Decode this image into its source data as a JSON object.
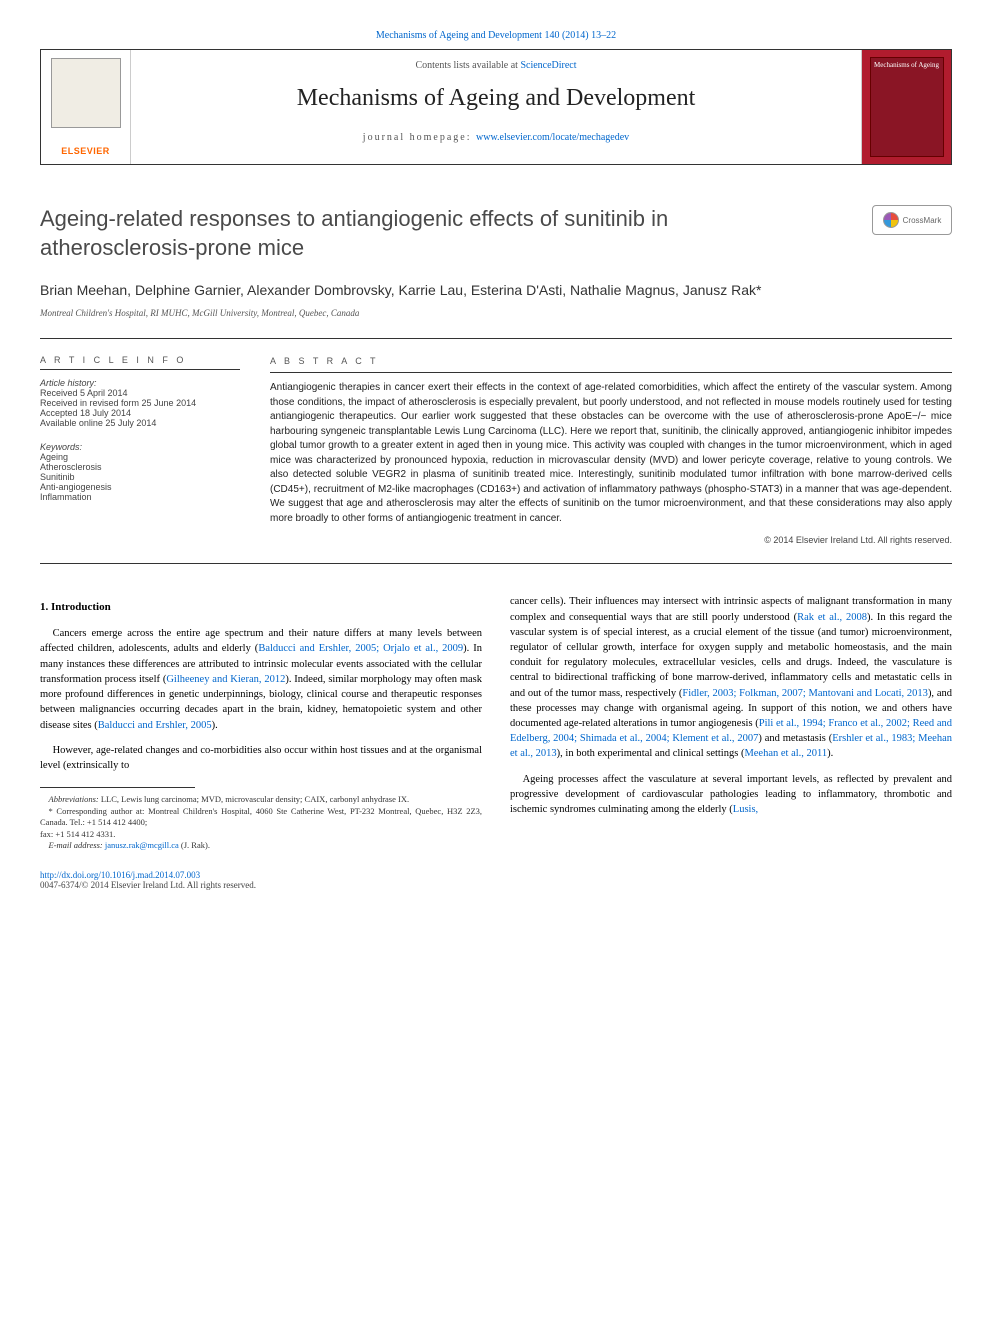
{
  "top_link": "Mechanisms of Ageing and Development 140 (2014) 13–22",
  "header": {
    "contents_prefix": "Contents lists available at ",
    "contents_link": "ScienceDirect",
    "journal_title": "Mechanisms of Ageing and Development",
    "homepage_prefix": "journal homepage: ",
    "homepage_url": "www.elsevier.com/locate/mechagedev",
    "elsevier": "ELSEVIER",
    "cover_text": "Mechanisms of Ageing"
  },
  "crossmark": "CrossMark",
  "article": {
    "title": "Ageing-related responses to antiangiogenic effects of sunitinib in atherosclerosis-prone mice",
    "authors": "Brian Meehan, Delphine Garnier, Alexander Dombrovsky, Karrie Lau, Esterina D'Asti, Nathalie Magnus, Janusz Rak",
    "corr_mark": "*",
    "affiliation": "Montreal Children's Hospital, RI MUHC, McGill University, Montreal, Quebec, Canada"
  },
  "info": {
    "heading": "A R T I C L E   I N F O",
    "history_label": "Article history:",
    "history": [
      "Received 5 April 2014",
      "Received in revised form 25 June 2014",
      "Accepted 18 July 2014",
      "Available online 25 July 2014"
    ],
    "keywords_label": "Keywords:",
    "keywords": [
      "Ageing",
      "Atherosclerosis",
      "Sunitinib",
      "Anti-angiogenesis",
      "Inflammation"
    ]
  },
  "abstract": {
    "heading": "A B S T R A C T",
    "text": "Antiangiogenic therapies in cancer exert their effects in the context of age-related comorbidities, which affect the entirety of the vascular system. Among those conditions, the impact of atherosclerosis is especially prevalent, but poorly understood, and not reflected in mouse models routinely used for testing antiangiogenic therapeutics. Our earlier work suggested that these obstacles can be overcome with the use of atherosclerosis-prone ApoE−/− mice harbouring syngeneic transplantable Lewis Lung Carcinoma (LLC). Here we report that, sunitinib, the clinically approved, antiangiogenic inhibitor impedes global tumor growth to a greater extent in aged then in young mice. This activity was coupled with changes in the tumor microenvironment, which in aged mice was characterized by pronounced hypoxia, reduction in microvascular density (MVD) and lower pericyte coverage, relative to young controls. We also detected soluble VEGR2 in plasma of sunitinib treated mice. Interestingly, sunitinib modulated tumor infiltration with bone marrow-derived cells (CD45+), recruitment of M2-like macrophages (CD163+) and activation of inflammatory pathways (phospho-STAT3) in a manner that was age-dependent. We suggest that age and atherosclerosis may alter the effects of sunitinib on the tumor microenvironment, and that these considerations may also apply more broadly to other forms of antiangiogenic treatment in cancer.",
    "copyright": "© 2014 Elsevier Ireland Ltd. All rights reserved."
  },
  "body": {
    "heading1": "1. Introduction",
    "left_p1": "Cancers emerge across the entire age spectrum and their nature differs at many levels between affected children, adolescents, adults and elderly (",
    "left_c1": "Balducci and Ershler, 2005; Orjalo et al., 2009",
    "left_p1b": "). In many instances these differences are attributed to intrinsic molecular events associated with the cellular transformation process itself (",
    "left_c2": "Gilheeney and Kieran, 2012",
    "left_p1c": "). Indeed, similar morphology may often mask more profound differences in genetic underpinnings, biology, clinical course and therapeutic responses between malignancies occurring decades apart in the brain, kidney, hematopoietic system and other disease sites (",
    "left_c3": "Balducci and Ershler, 2005",
    "left_p1d": ").",
    "left_p2": "However, age-related changes and co-morbidities also occur within host tissues and at the organismal level (extrinsically to",
    "right_p1": "cancer cells). Their influences may intersect with intrinsic aspects of malignant transformation in many complex and consequential ways that are still poorly understood (",
    "right_c1": "Rak et al., 2008",
    "right_p1b": "). In this regard the vascular system is of special interest, as a crucial element of the tissue (and tumor) microenvironment, regulator of cellular growth, interface for oxygen supply and metabolic homeostasis, and the main conduit for regulatory molecules, extracellular vesicles, cells and drugs. Indeed, the vasculature is central to bidirectional trafficking of bone marrow-derived, inflammatory cells and metastatic cells in and out of the tumor mass, respectively (",
    "right_c2": "Fidler, 2003; Folkman, 2007; Mantovani and Locati, 2013",
    "right_p1c": "), and these processes may change with organismal ageing. In support of this notion, we and others have documented age-related alterations in tumor angiogenesis (",
    "right_c3": "Pili et al., 1994; Franco et al., 2002; Reed and Edelberg, 2004; Shimada et al., 2004; Klement et al., 2007",
    "right_p1d": ") and metastasis (",
    "right_c4": "Ershler et al., 1983; Meehan et al., 2013",
    "right_p1e": "), in both experimental and clinical settings (",
    "right_c5": "Meehan et al., 2011",
    "right_p1f": ").",
    "right_p2": "Ageing processes affect the vasculature at several important levels, as reflected by prevalent and progressive development of cardiovascular pathologies leading to inflammatory, thrombotic and ischemic syndromes culminating among the elderly (",
    "right_c6": "Lusis,"
  },
  "footnotes": {
    "abbrev_label": "Abbreviations:",
    "abbrev": " LLC, Lewis lung carcinoma; MVD, microvascular density; CAIX, carbonyl anhydrase IX.",
    "corr_label": "* Corresponding author at:",
    "corr": " Montreal Children's Hospital, 4060 Ste Catherine West, PT-232 Montreal, Quebec, H3Z 2Z3, Canada. Tel.: +1 514 412 4400;",
    "fax": "fax: +1 514 412 4331.",
    "email_label": "E-mail address: ",
    "email": "janusz.rak@mcgill.ca",
    "email_suffix": " (J. Rak)."
  },
  "bottom": {
    "doi": "http://dx.doi.org/10.1016/j.mad.2014.07.003",
    "issn": "0047-6374/© 2014 Elsevier Ireland Ltd. All rights reserved."
  }
}
